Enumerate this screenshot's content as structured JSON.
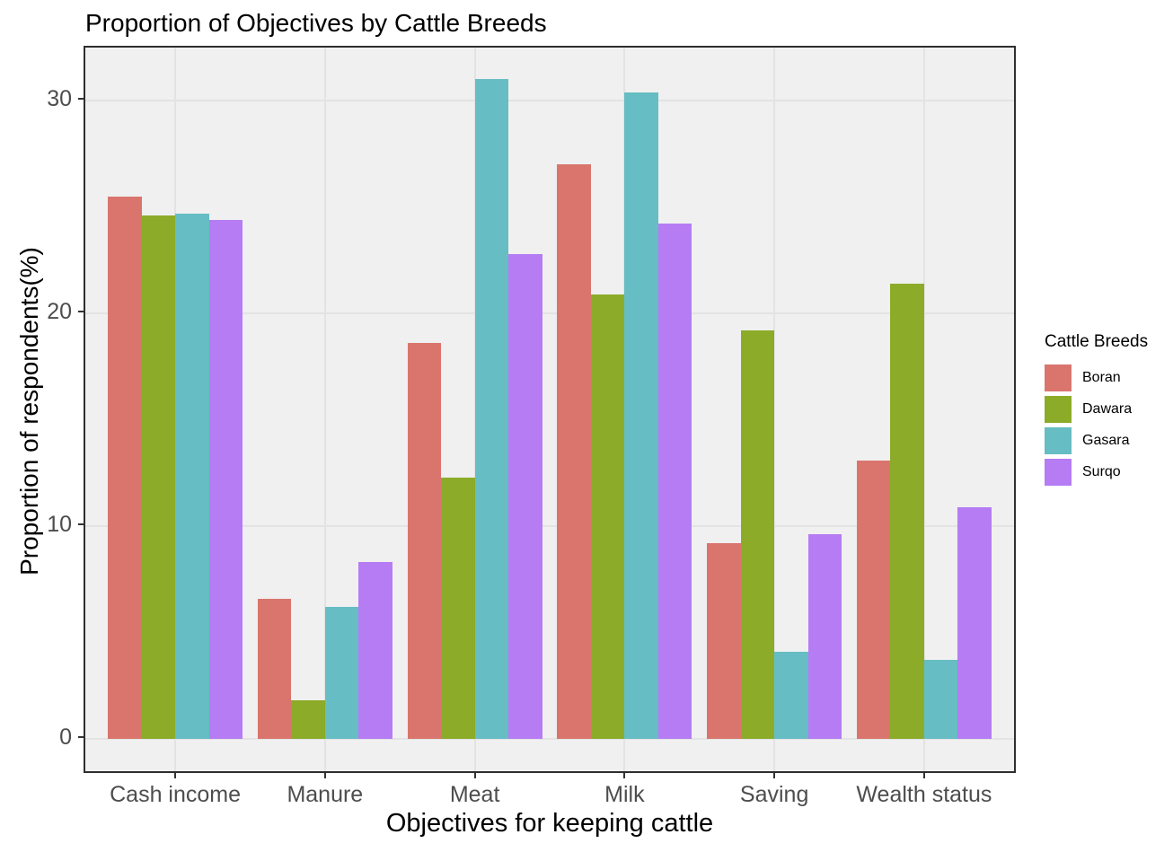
{
  "title": "Proportion of Objectives by Cattle Breeds",
  "chart_data": {
    "type": "bar",
    "grouped": true,
    "title": "Proportion of Objectives by Cattle Breeds",
    "xlabel": "Objectives for keeping cattle",
    "ylabel": "Proportion of respondents(%)",
    "categories": [
      "Cash income",
      "Manure",
      "Meat",
      "Milk",
      "Saving",
      "Wealth status"
    ],
    "series": [
      {
        "name": "Boran",
        "color": "#D9756D",
        "values": [
          25.5,
          6.6,
          18.6,
          27.0,
          9.2,
          13.1
        ]
      },
      {
        "name": "Dawara",
        "color": "#8CAC29",
        "values": [
          24.6,
          1.8,
          12.3,
          20.9,
          19.2,
          21.4
        ]
      },
      {
        "name": "Gasara",
        "color": "#66BDC3",
        "values": [
          24.7,
          6.2,
          31.0,
          30.4,
          4.1,
          3.7
        ]
      },
      {
        "name": "Surqo",
        "color": "#B57CF4",
        "values": [
          24.4,
          8.3,
          22.8,
          24.2,
          9.6,
          10.9
        ]
      }
    ],
    "yticks": [
      0,
      10,
      20,
      30
    ],
    "ylim": [
      0,
      32.5
    ],
    "grid": true,
    "legend_title": "Cattle Breeds",
    "legend_position": "right",
    "panel_background": "#f0f0f0",
    "gridline_color": "#e3e3e3",
    "axis_text_color": "#4d4d4d"
  }
}
